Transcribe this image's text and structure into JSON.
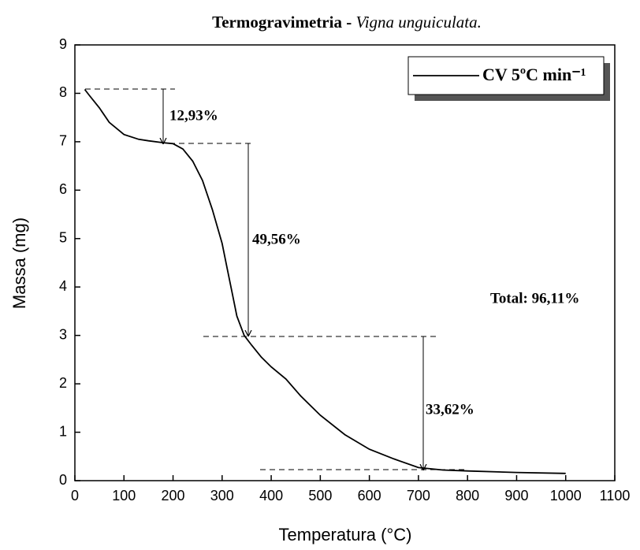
{
  "chart_data": {
    "type": "line",
    "title": "Termogravimetria - ",
    "title_species": "Vigna unguiculata.",
    "x_label": "Temperatura (°C)",
    "y_label": "Massa (mg)",
    "xlim": [
      0,
      1100
    ],
    "xticks": [
      0,
      100,
      200,
      300,
      400,
      500,
      600,
      700,
      800,
      900,
      1000,
      1100
    ],
    "ylim": [
      0,
      9
    ],
    "yticks": [
      0,
      1,
      2,
      3,
      4,
      5,
      6,
      7,
      8,
      9
    ],
    "x": [
      20,
      30,
      50,
      70,
      100,
      130,
      150,
      180,
      200,
      220,
      240,
      260,
      280,
      300,
      310,
      320,
      330,
      345,
      360,
      380,
      400,
      430,
      460,
      500,
      550,
      600,
      650,
      700,
      750,
      800,
      900,
      1000
    ],
    "series": [
      {
        "name": "CV 5ºC min⁻¹",
        "color": "#000000",
        "values": [
          8.08,
          7.95,
          7.7,
          7.4,
          7.15,
          7.05,
          7.02,
          6.98,
          6.96,
          6.85,
          6.6,
          6.2,
          5.6,
          4.9,
          4.4,
          3.9,
          3.4,
          3.0,
          2.8,
          2.55,
          2.35,
          2.1,
          1.75,
          1.35,
          0.95,
          0.65,
          0.45,
          0.27,
          0.22,
          0.2,
          0.17,
          0.15
        ]
      }
    ],
    "annotations": [
      "12,93%",
      "49,56%",
      "33,62%",
      "Total: 96,11%"
    ]
  }
}
